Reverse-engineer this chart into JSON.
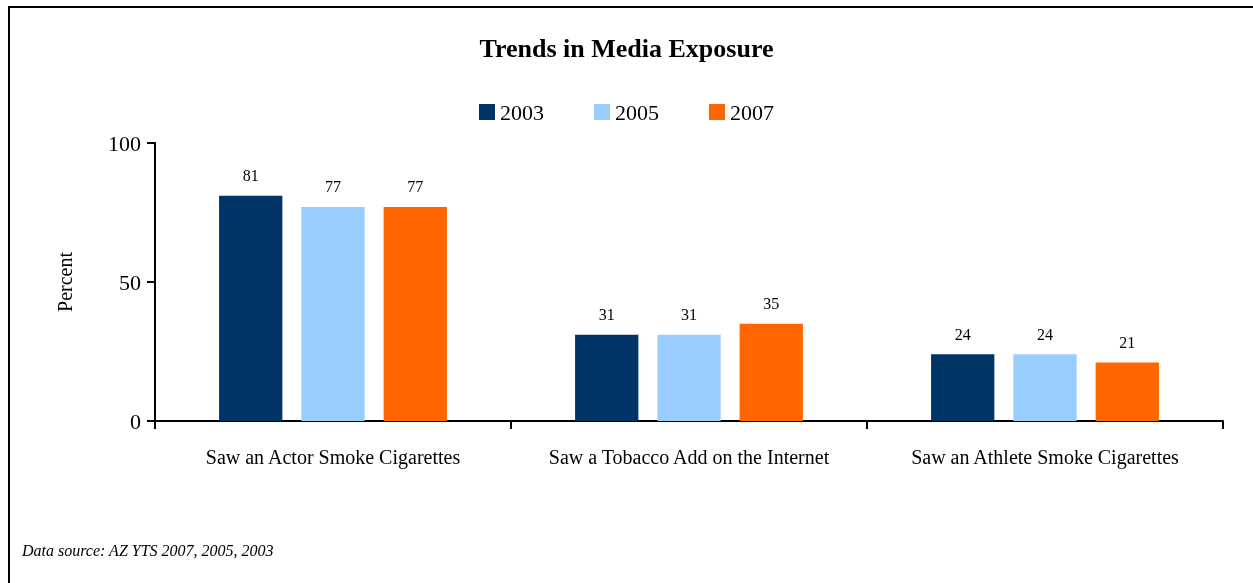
{
  "chart_data": {
    "type": "bar",
    "title": "Trends in Media Exposure",
    "ylabel": "Percent",
    "categories": [
      "Saw an Actor Smoke Cigarettes",
      "Saw a Tobacco Add on the Internet",
      "Saw an Athlete Smoke Cigarettes"
    ],
    "series": [
      {
        "name": "2003",
        "color": "#003366",
        "values": [
          81,
          31,
          24
        ]
      },
      {
        "name": "2005",
        "color": "#99ccff",
        "values": [
          77,
          31,
          24
        ]
      },
      {
        "name": "2007",
        "color": "#ff6600",
        "values": [
          77,
          35,
          21
        ]
      }
    ],
    "ylim": [
      0,
      100
    ],
    "yticks": [
      0,
      50,
      100
    ],
    "grid": false,
    "legend": "top",
    "data_labels": true,
    "annotations": [
      "Data source: AZ YTS 2007, 2005, 2003"
    ]
  }
}
